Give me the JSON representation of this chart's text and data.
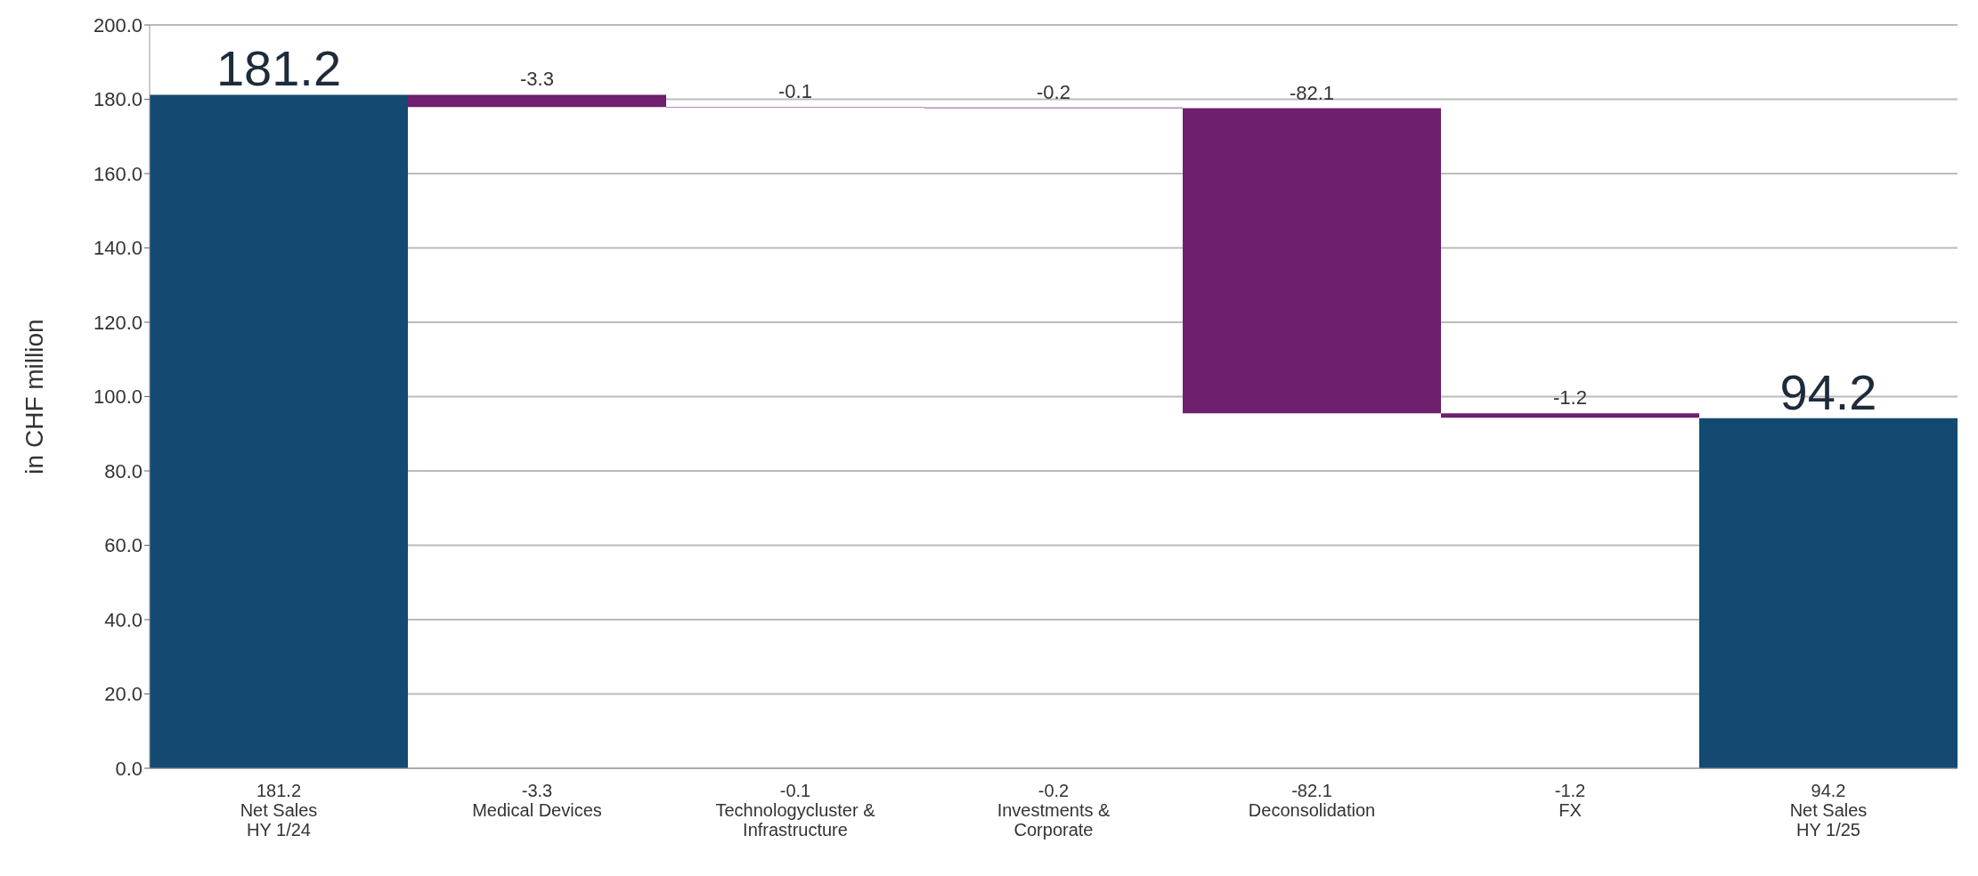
{
  "chart_data": {
    "type": "bar",
    "ylabel": "in CHF million",
    "categories": [
      "181.2\nNet Sales\nHY 1/24",
      "-3.3\nMedical Devices",
      "-0.1\nTechnologycluster &\nInfrastructure",
      "-0.2\nInvestments &\nCorporate",
      "-82.1\nDeconsolidation",
      "-1.2\nFX",
      "94.2\nNet Sales\nHY 1/25"
    ],
    "series": [
      {
        "color": "#144a72",
        "values": [
          181.2,
          null,
          null,
          null,
          null,
          null,
          94.2
        ],
        "value_labels": [
          "181.2",
          null,
          null,
          null,
          null,
          null,
          "94.2"
        ]
      },
      {
        "color": "#6e1f6e",
        "values": [
          null,
          -3.3,
          -0.1,
          -0.2,
          -82.1,
          -1.2,
          null
        ],
        "base": [
          null,
          181.2,
          177.9,
          177.8,
          177.6,
          95.5,
          null
        ],
        "value_labels": [
          null,
          "-3.3",
          "-0.1",
          "-0.2",
          "-82.1",
          "-1.2",
          null
        ]
      }
    ],
    "ylim": [
      0,
      200
    ],
    "yticks": [
      {
        "value": 0,
        "label": "0.0"
      },
      {
        "value": 20,
        "label": "20.0"
      },
      {
        "value": 40,
        "label": "40.0"
      },
      {
        "value": 60,
        "label": "60.0"
      },
      {
        "value": 80,
        "label": "80.0"
      },
      {
        "value": 100,
        "label": "100.0"
      },
      {
        "value": 120,
        "label": "120.0"
      },
      {
        "value": 140,
        "label": "140.0"
      },
      {
        "value": 160,
        "label": "160.0"
      },
      {
        "value": 180,
        "label": "180.0"
      },
      {
        "value": 200,
        "label": "200.0"
      }
    ],
    "grid": "y",
    "legend": false
  }
}
